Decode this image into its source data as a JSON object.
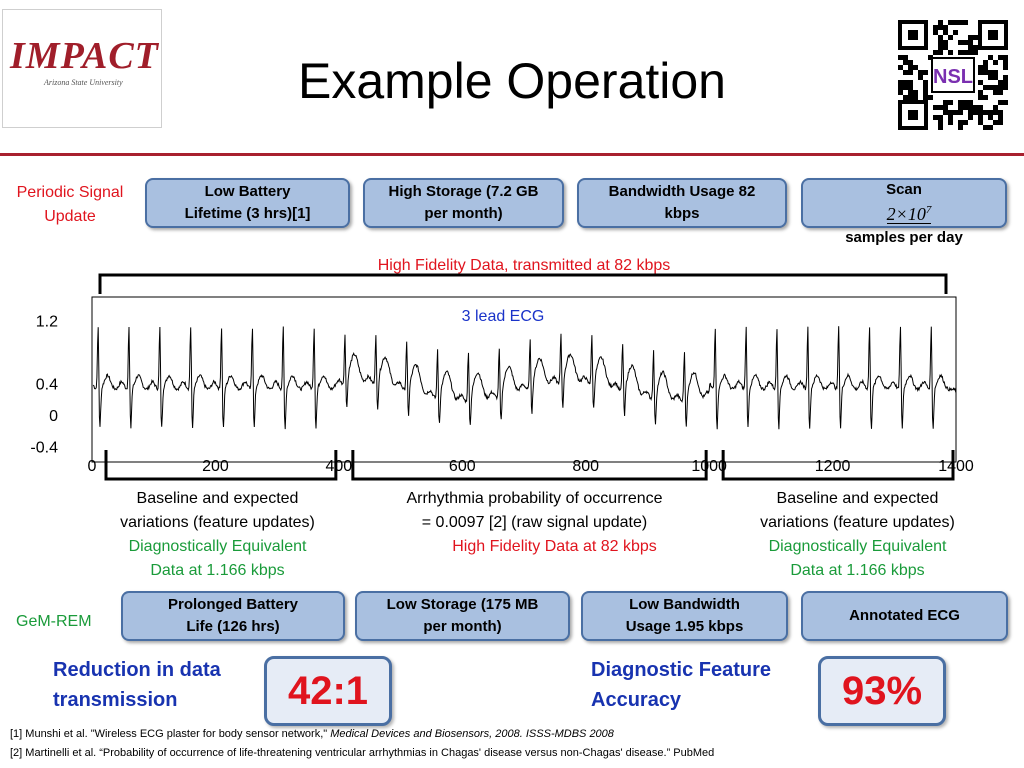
{
  "header": {
    "logo_text": "IMPACT",
    "logo_subtext": "Arizona State University",
    "title": "Example Operation",
    "qr_badge": "NSL"
  },
  "periodic": {
    "label": "Periodic Signal\nUpdate",
    "boxes": [
      {
        "label": "Low Battery\nLifetime (3 hrs)[1]"
      },
      {
        "label": "High Storage (7.2 GB\nper month)"
      },
      {
        "label": "Bandwidth Usage 82\nkbps"
      }
    ],
    "scan": {
      "prefix": "Scan",
      "base": "2×10",
      "exponent": "7",
      "suffix": "samples per day"
    }
  },
  "chart_data": {
    "type": "line",
    "title": "3 lead ECG",
    "xlim": [
      0,
      1400
    ],
    "x_ticks": [
      "0",
      "200",
      "400",
      "600",
      "800",
      "1000",
      "1200",
      "1400"
    ],
    "y_tick_labels": [
      "1.2",
      "0.4",
      "0",
      "-0.4"
    ],
    "y_tick_values": [
      1.2,
      0.4,
      0,
      -0.4
    ],
    "ylim": [
      -0.6,
      1.5
    ],
    "grid": false,
    "top_bracket_label": "High Fidelity Data, transmitted at 82 kbps",
    "segments": [
      {
        "range": [
          0,
          400
        ],
        "lines": [
          "Baseline and expected",
          "variations (feature updates)"
        ],
        "note": [
          "Diagnostically Equivalent",
          "Data at 1.166 kbps"
        ]
      },
      {
        "range": [
          400,
          1000
        ],
        "lines": [
          "Arrhythmia probability of occurrence",
          "= 0.0097 [2] (raw signal update)"
        ],
        "note": [
          "High Fidelity Data at 82 kbps"
        ]
      },
      {
        "range": [
          1000,
          1400
        ],
        "lines": [
          "Baseline and expected",
          "variations (feature updates)"
        ],
        "note": [
          "Diagnostically Equivalent",
          "Data at 1.166 kbps"
        ]
      }
    ]
  },
  "gemrem": {
    "label": "GeM-REM",
    "boxes": [
      {
        "label": "Prolonged Battery\nLife (126 hrs)"
      },
      {
        "label": "Low Storage (175 MB\nper month)"
      },
      {
        "label": "Low Bandwidth\nUsage 1.95 kbps"
      },
      {
        "label": "Annotated ECG"
      }
    ]
  },
  "results": {
    "reduction_label": "Reduction in data\ntransmission",
    "reduction_value": "42:1",
    "accuracy_label": "Diagnostic Feature\nAccuracy",
    "accuracy_value": "93%"
  },
  "footnotes": {
    "ref1_plain": "[1] Munshi et al. \"Wireless ECG plaster for body sensor network,\" ",
    "ref1_italic": "Medical Devices and Biosensors, 2008. ISSS-MDBS 2008",
    "ref2": "[2] Martinelli et al. “Probability of occurrence of life-threatening ventricular arrhythmias in Chagas' disease versus non-Chagas' disease.” PubMed"
  },
  "colors": {
    "accent_red": "#e0141e",
    "box_fill": "#a9c0e0",
    "box_border": "#4a6fa3",
    "rule": "#a8202e",
    "green": "#1a9b3a",
    "blue": "#1a33c9"
  }
}
